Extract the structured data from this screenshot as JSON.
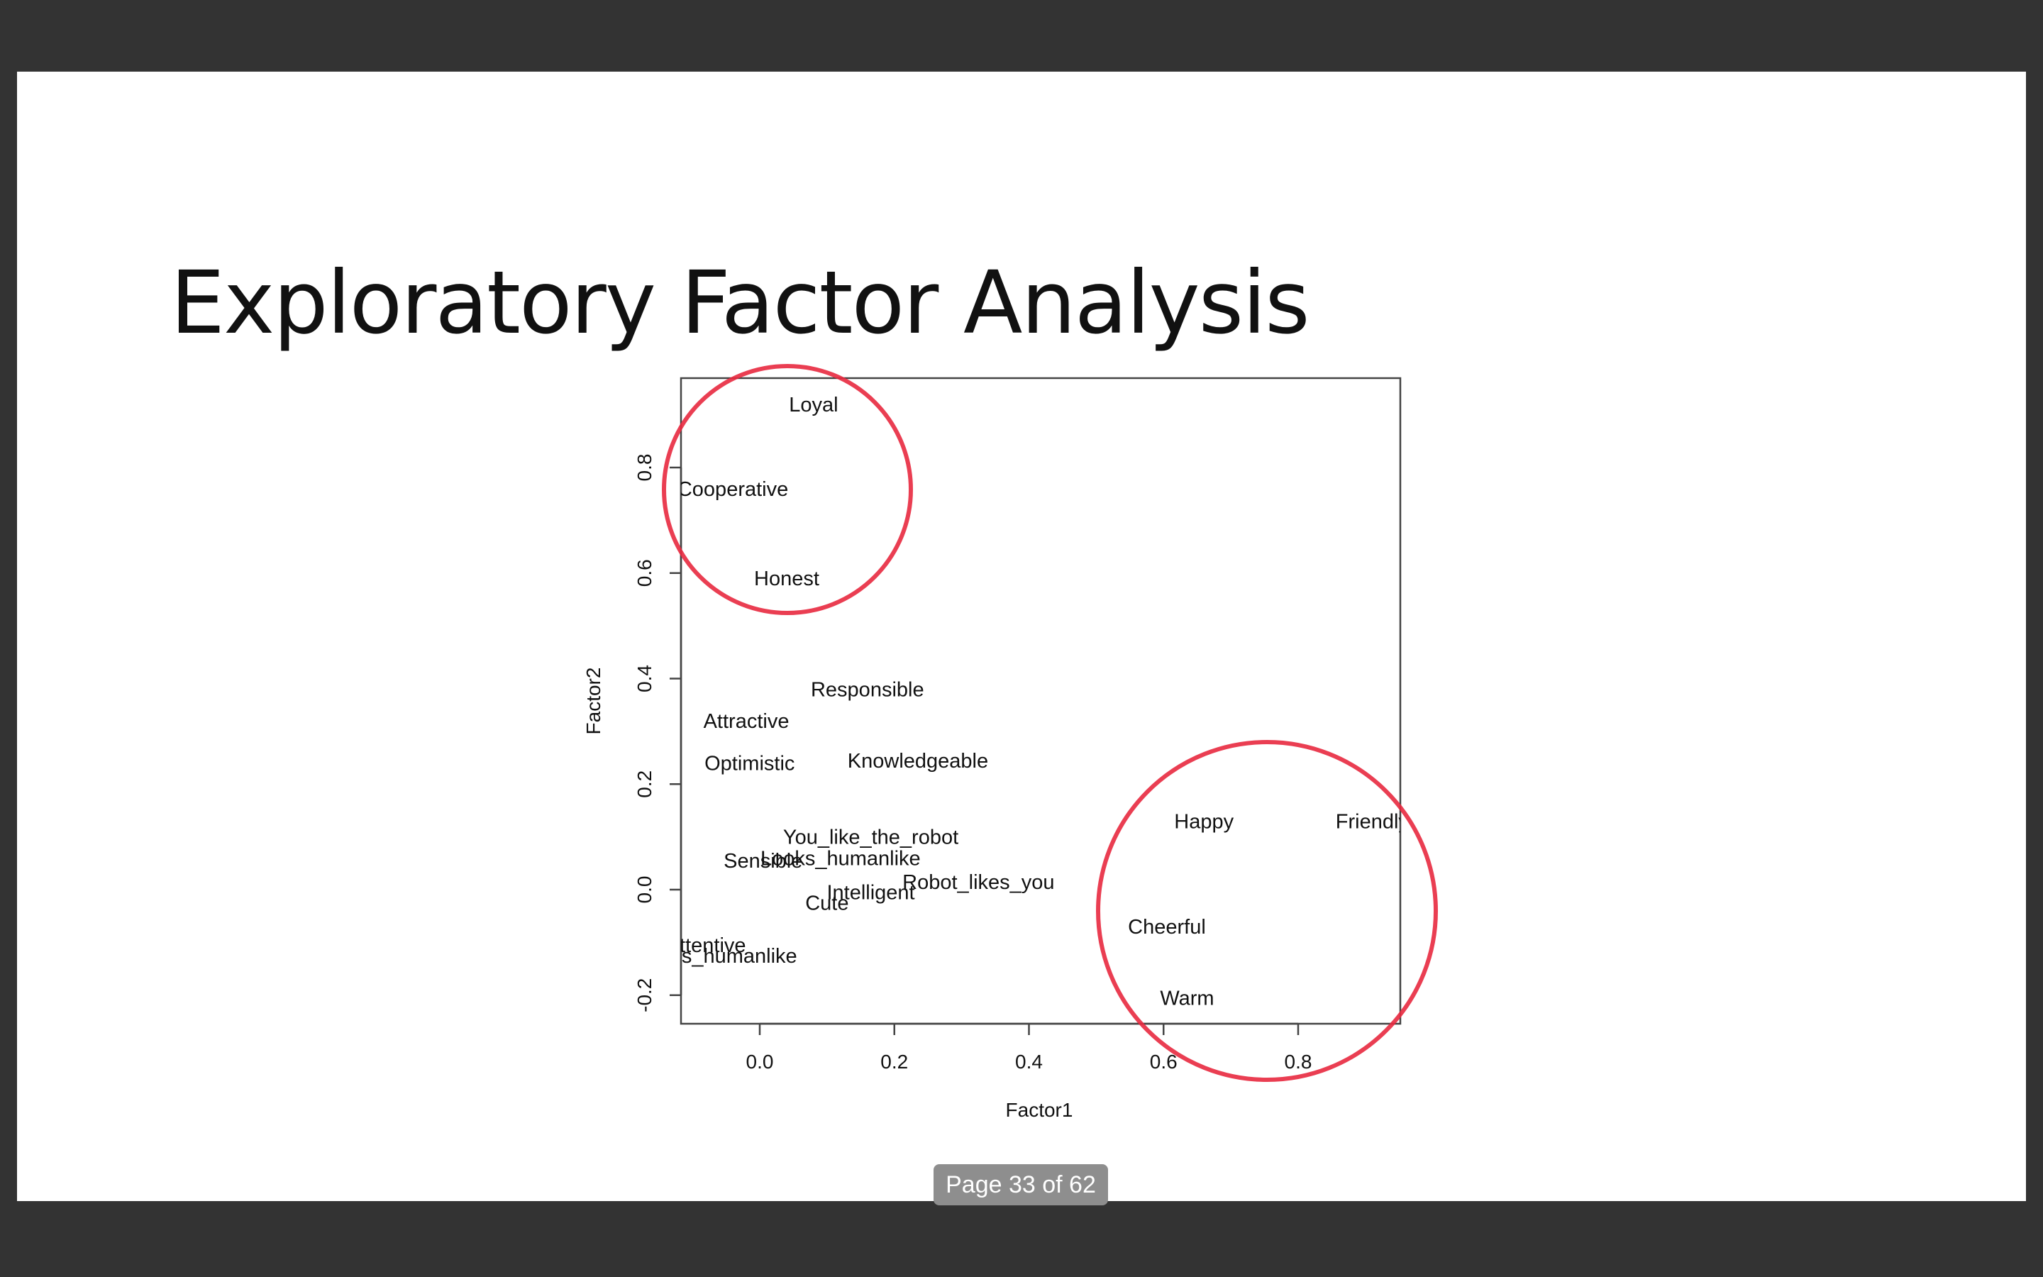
{
  "slide": {
    "title": "Exploratory Factor Analysis"
  },
  "page_indicator": {
    "label": "Page 33 of 62"
  },
  "chart_data": {
    "type": "scatter",
    "title": "",
    "xlabel": "Factor1",
    "ylabel": "Factor2",
    "xlim": [
      -0.12,
      0.95
    ],
    "ylim": [
      -0.25,
      0.97
    ],
    "x_ticks": [
      "0.0",
      "0.2",
      "0.4",
      "0.6",
      "0.8"
    ],
    "y_ticks": [
      "-0.2",
      "0.0",
      "0.2",
      "0.4",
      "0.6",
      "0.8"
    ],
    "grid": false,
    "points": [
      {
        "label": "Loyal",
        "x": 0.08,
        "y": 0.92
      },
      {
        "label": "Cooperative",
        "x": -0.04,
        "y": 0.76
      },
      {
        "label": "Honest",
        "x": 0.04,
        "y": 0.59
      },
      {
        "label": "Responsible",
        "x": 0.16,
        "y": 0.38
      },
      {
        "label": "Attractive",
        "x": -0.02,
        "y": 0.32
      },
      {
        "label": "Optimistic",
        "x": -0.015,
        "y": 0.24
      },
      {
        "label": "Knowledgeable",
        "x": 0.235,
        "y": 0.245
      },
      {
        "label": "You_like_the_robot",
        "x": 0.165,
        "y": 0.1
      },
      {
        "label": "Looks_humanlike",
        "x": 0.12,
        "y": 0.06
      },
      {
        "label": "Sensible",
        "x": 0.005,
        "y": 0.055
      },
      {
        "label": "Robot_likes_you",
        "x": 0.325,
        "y": 0.015
      },
      {
        "label": "Intelligent",
        "x": 0.165,
        "y": -0.005
      },
      {
        "label": "Cute",
        "x": 0.1,
        "y": -0.025
      },
      {
        "label": "Attentive",
        "x": -0.08,
        "y": -0.105
      },
      {
        "label": "Feels_humanlike",
        "x": -0.06,
        "y": -0.125
      },
      {
        "label": "Happy",
        "x": 0.66,
        "y": 0.13
      },
      {
        "label": "Friendly",
        "x": 0.91,
        "y": 0.13
      },
      {
        "label": "Cheerful",
        "x": 0.605,
        "y": -0.07
      },
      {
        "label": "Warm",
        "x": 0.635,
        "y": -0.205
      }
    ],
    "annotations": [
      {
        "shape": "circle",
        "color": "#e8293f",
        "encloses": [
          "Loyal",
          "Cooperative",
          "Honest"
        ]
      },
      {
        "shape": "circle",
        "color": "#e8293f",
        "encloses": [
          "Happy",
          "Friendly",
          "Cheerful",
          "Warm"
        ]
      }
    ]
  }
}
